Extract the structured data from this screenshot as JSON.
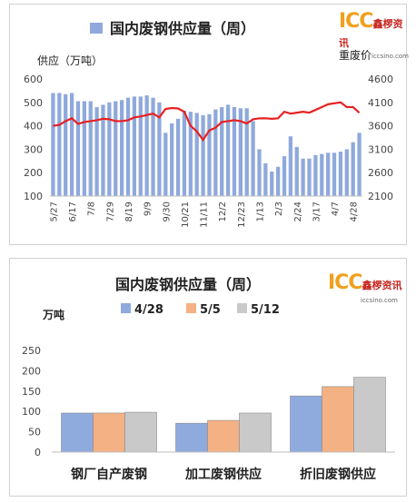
{
  "chart_data": [
    {
      "type": "bar+line",
      "title": "国内废钢供应量（周）",
      "legend": "top-center",
      "ylabel_left": "供应（万吨）",
      "ylabel_right": "重废价",
      "ylim_left": [
        100,
        600
      ],
      "yticks_left": [
        "100",
        "200",
        "300",
        "400",
        "500",
        "600"
      ],
      "ylim_right": [
        2100,
        4600
      ],
      "yticks_right": [
        "2100",
        "2600",
        "3100",
        "3600",
        "4100",
        "4600"
      ],
      "xtick_labels": [
        "5/27",
        "6/17",
        "7/8",
        "7/29",
        "8/19",
        "9/9",
        "9/30",
        "10/21",
        "11/11",
        "12/2",
        "12/23",
        "1/13",
        "2/3",
        "2/24",
        "3/17",
        "4/7",
        "4/28"
      ],
      "series": [
        {
          "name": "",
          "type": "bar",
          "color": "#8fa9dc",
          "values": [
            540,
            540,
            535,
            540,
            505,
            505,
            505,
            480,
            490,
            500,
            505,
            510,
            520,
            525,
            525,
            530,
            520,
            500,
            370,
            410,
            430,
            465,
            460,
            455,
            445,
            450,
            470,
            480,
            490,
            480,
            475,
            475,
            420,
            300,
            240,
            205,
            225,
            270,
            355,
            310,
            260,
            260,
            275,
            280,
            285,
            285,
            290,
            300,
            330,
            370
          ]
        },
        {
          "name": "",
          "type": "line",
          "color": "#e82020",
          "values": [
            3600,
            3620,
            3700,
            3760,
            3640,
            3680,
            3700,
            3720,
            3750,
            3740,
            3700,
            3700,
            3720,
            3780,
            3800,
            3830,
            3860,
            3780,
            3960,
            3980,
            3970,
            3900,
            3600,
            3480,
            3300,
            3500,
            3560,
            3680,
            3700,
            3720,
            3700,
            3650,
            3740,
            3760,
            3760,
            3750,
            3760,
            3900,
            3860,
            3880,
            3900,
            3880,
            3940,
            4000,
            4060,
            4080,
            4100,
            4000,
            4000,
            3880
          ]
        }
      ]
    },
    {
      "type": "bar",
      "title": "国内废钢供应量（周）",
      "ylabel": "万吨",
      "ylim": [
        0,
        250
      ],
      "yticks": [
        "0",
        "50",
        "100",
        "150",
        "200",
        "250"
      ],
      "legend": "top-center",
      "categories": [
        "钢厂自产废钢",
        "加工废钢供应",
        "折旧废钢供应"
      ],
      "series": [
        {
          "name": "4/28",
          "color": "#8faadc",
          "values": [
            96,
            71,
            138
          ]
        },
        {
          "name": "5/5",
          "color": "#f4b183",
          "values": [
            96,
            78,
            161
          ]
        },
        {
          "name": "5/12",
          "color": "#c9c9c9",
          "values": [
            98,
            96,
            184
          ]
        }
      ]
    }
  ],
  "logo": {
    "brand": "ICC",
    "name_cn": "鑫椤资讯",
    "url": "iccsino.com"
  }
}
